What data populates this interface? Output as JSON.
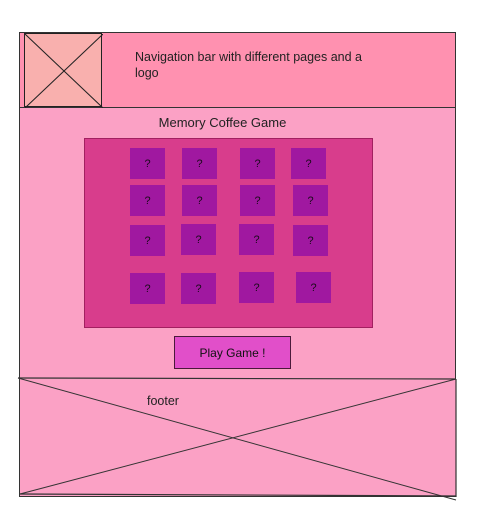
{
  "navbar": {
    "text": "Navigation bar with different pages and a logo"
  },
  "game": {
    "title": "Memory Coffee Game"
  },
  "board": {
    "rows": [
      [
        "?",
        "?",
        "?",
        "?"
      ],
      [
        "?",
        "?",
        "?",
        "?"
      ],
      [
        "?",
        "?",
        "?",
        "?"
      ],
      [
        "?",
        "?",
        "?",
        "?"
      ]
    ]
  },
  "play_button": {
    "label": "Play Game !"
  },
  "footer": {
    "label": "footer"
  },
  "colors": {
    "navbar": "#ff91b0",
    "page": "#fba1c5",
    "board": "#d83d8c",
    "card": "#a018a0",
    "button": "#e14fc9"
  }
}
